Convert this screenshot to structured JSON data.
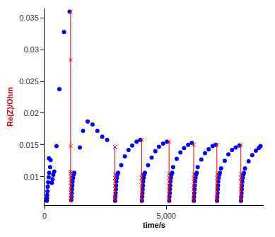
{
  "chart_data": {
    "type": "scatter",
    "x_label": "time/s",
    "y_label": "Re(Z)/Ohm",
    "xlim": [
      0,
      9000
    ],
    "ylim": [
      0.0055,
      0.0365
    ],
    "xticks": [
      0,
      {
        "value": 5000,
        "label": "5,000"
      }
    ],
    "yticks": [
      0.01,
      0.015,
      0.02,
      0.025,
      0.03,
      0.035
    ],
    "grid": false,
    "series": [
      {
        "type": "scatter",
        "marker": "circle",
        "color": "#0000ff",
        "x": [
          90,
          100,
          110,
          120,
          130,
          150,
          170,
          190,
          230,
          180,
          250,
          300,
          330,
          360,
          400,
          490,
          610,
          800,
          1030,
          1100,
          1110,
          1120,
          1130,
          1140,
          1150,
          1170,
          1190,
          1220,
          1450,
          1580,
          1770,
          1970,
          2170,
          2370,
          2570,
          2900,
          2910,
          2920,
          2930,
          2940,
          2950,
          2970,
          2990,
          3020,
          3150,
          3300,
          3450,
          3600,
          3780,
          3930,
          4000,
          4010,
          4020,
          4030,
          4040,
          4050,
          4070,
          4090,
          4120,
          4250,
          4400,
          4550,
          4700,
          4870,
          5030,
          5120,
          5130,
          5140,
          5150,
          5160,
          5170,
          5190,
          5210,
          5240,
          5280,
          5430,
          5580,
          5730,
          5900,
          6050,
          6130,
          6140,
          6150,
          6160,
          6170,
          6180,
          6200,
          6220,
          6250,
          6290,
          6440,
          6590,
          6740,
          6900,
          7030,
          7085,
          7095,
          7105,
          7115,
          7125,
          7135,
          7155,
          7175,
          7200,
          7250,
          7400,
          7550,
          7700,
          7850,
          8000,
          8070,
          8080,
          8090,
          8100,
          8110,
          8120,
          8140,
          8160,
          8190,
          8230,
          8380,
          8530,
          8680,
          8800,
          8870
        ],
        "values": [
          0.0062,
          0.0066,
          0.0071,
          0.0077,
          0.0084,
          0.0091,
          0.0099,
          0.0106,
          0.0115,
          0.0129,
          0.0126,
          0.009,
          0.0096,
          0.0103,
          0.0108,
          0.0148,
          0.0238,
          0.0328,
          0.036,
          0.0063,
          0.0068,
          0.0074,
          0.008,
          0.0086,
          0.0092,
          0.0098,
          0.0103,
          0.0106,
          0.0146,
          0.0172,
          0.0187,
          0.0182,
          0.0172,
          0.0163,
          0.0158,
          0.0062,
          0.0068,
          0.0074,
          0.008,
          0.0086,
          0.0092,
          0.0098,
          0.0103,
          0.0106,
          0.0118,
          0.0132,
          0.0142,
          0.0149,
          0.0155,
          0.0158,
          0.0062,
          0.0068,
          0.0074,
          0.008,
          0.0086,
          0.0092,
          0.0098,
          0.0103,
          0.0106,
          0.0118,
          0.013,
          0.014,
          0.0147,
          0.0152,
          0.0155,
          0.0062,
          0.0068,
          0.0074,
          0.008,
          0.0086,
          0.0092,
          0.0098,
          0.0103,
          0.0106,
          0.0115,
          0.0128,
          0.0138,
          0.0145,
          0.015,
          0.0153,
          0.0062,
          0.0068,
          0.0074,
          0.008,
          0.0086,
          0.0092,
          0.0098,
          0.0103,
          0.0106,
          0.0115,
          0.0127,
          0.0137,
          0.0143,
          0.0148,
          0.015,
          0.0062,
          0.0068,
          0.0074,
          0.008,
          0.0086,
          0.0092,
          0.0098,
          0.0103,
          0.0106,
          0.0113,
          0.0125,
          0.0135,
          0.0142,
          0.0146,
          0.0149,
          0.0062,
          0.0068,
          0.0074,
          0.008,
          0.0086,
          0.0092,
          0.0098,
          0.0103,
          0.0106,
          0.0113,
          0.0124,
          0.0134,
          0.0141,
          0.0145,
          0.0148
        ]
      },
      {
        "type": "line",
        "marker": "x",
        "line_style": "solid",
        "color": "#e00000",
        "x": [
          1070,
          1070,
          1070,
          1070,
          1070,
          1070,
          1070,
          1070,
          1070,
          1070,
          1070,
          1070,
          1070,
          1070,
          1070,
          2890,
          2890,
          2890,
          2890,
          2890,
          2890,
          2890,
          2890,
          2890,
          2890,
          3990,
          3990,
          3990,
          3990,
          3990,
          3990,
          3990,
          3990,
          3990,
          3990,
          5115,
          5115,
          5115,
          5115,
          5115,
          5115,
          5115,
          5115,
          5115,
          5115,
          6125,
          6125,
          6125,
          6125,
          6125,
          6125,
          6125,
          6125,
          6125,
          6125,
          7080,
          7080,
          7080,
          7080,
          7080,
          7080,
          7080,
          7080,
          7080,
          7080,
          8065,
          8065,
          8065,
          8065,
          8065,
          8065,
          8065,
          8065,
          8065
        ],
        "values": [
          0.0062,
          0.0066,
          0.007,
          0.0075,
          0.008,
          0.0085,
          0.009,
          0.0095,
          0.01,
          0.0105,
          0.0108,
          0.0148,
          0.0284,
          0.036,
          null,
          0.0062,
          0.0068,
          0.0074,
          0.008,
          0.0086,
          0.0092,
          0.0098,
          0.0104,
          0.0147,
          null,
          0.0062,
          0.0068,
          0.0074,
          0.008,
          0.0086,
          0.0092,
          0.0098,
          0.0104,
          0.0158,
          null,
          0.0062,
          0.0068,
          0.0074,
          0.008,
          0.0086,
          0.0092,
          0.0098,
          0.0104,
          0.0155,
          null,
          0.0062,
          0.0068,
          0.0074,
          0.008,
          0.0086,
          0.0092,
          0.0098,
          0.0104,
          0.015,
          null,
          0.0062,
          0.0068,
          0.0074,
          0.008,
          0.0086,
          0.0092,
          0.0098,
          0.0104,
          0.015,
          null,
          0.0062,
          0.0068,
          0.0074,
          0.008,
          0.0086,
          0.0092,
          0.0098,
          0.0104,
          0.015
        ]
      }
    ]
  }
}
